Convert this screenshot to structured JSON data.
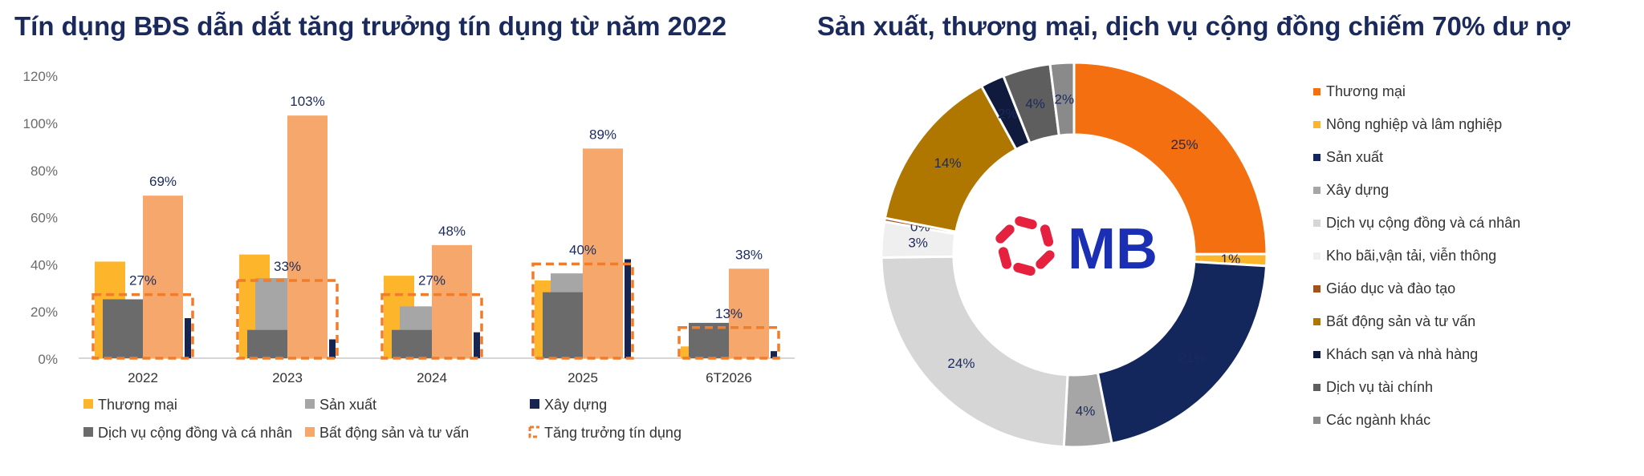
{
  "left_chart_title": "Tín dụng BĐS dẫn dắt tăng trưởng tín dụng từ năm 2022",
  "right_chart_title": "Sản xuất, thương mại, dịch vụ cộng đồng chiếm 70% dư nợ",
  "logo_text": "MB",
  "chart_data": [
    {
      "type": "bar",
      "title": "Tín dụng BĐS dẫn dắt tăng trưởng tín dụng từ năm 2022",
      "categories": [
        "2022",
        "2023",
        "2024",
        "2025",
        "6T2026"
      ],
      "ylim": [
        0,
        120
      ],
      "yticks": [
        "0%",
        "20%",
        "40%",
        "60%",
        "80%",
        "100%",
        "120%"
      ],
      "grid": false,
      "legend_position": "bottom",
      "series": [
        {
          "name": "Thương mại",
          "color": "#fdb52b",
          "values": [
            41,
            44,
            35,
            33,
            5
          ]
        },
        {
          "name": "Sản xuất",
          "color": "#a6a6a6",
          "values": [
            25,
            34,
            22,
            36,
            12
          ]
        },
        {
          "name": "Dịch vụ cộng đồng và cá nhân",
          "color": "#6b6b6b",
          "values": [
            25,
            12,
            12,
            28,
            15
          ]
        },
        {
          "name": "Bất động sản và tư vấn",
          "color": "#f6a86c",
          "values": [
            69,
            103,
            48,
            89,
            38
          ]
        },
        {
          "name": "Xây dựng",
          "color": "#17244f",
          "values": [
            17,
            8,
            11,
            42,
            3
          ]
        },
        {
          "name": "Tăng trưởng tín dụng",
          "color": "#ef7d2b",
          "style": "dashed-box",
          "values": [
            27,
            33,
            27,
            40,
            13
          ]
        }
      ],
      "bar_labels": [
        "69%",
        "103%",
        "48%",
        "89%",
        "38%"
      ],
      "growth_labels": [
        "27%",
        "33%",
        "27%",
        "40%",
        "13%"
      ],
      "legend_order": [
        "Thương mại",
        "Sản xuất",
        "Xây dựng",
        "Dịch vụ cộng đồng và cá nhân",
        "Bất động sản và tư vấn",
        "Tăng trưởng tín dụng"
      ]
    },
    {
      "type": "pie",
      "style": "donut",
      "title": "Sản xuất, thương mại, dịch vụ cộng đồng chiếm 70% dư nợ",
      "legend_position": "right",
      "slices": [
        {
          "name": "Thương mại",
          "value": 25,
          "label": "25%",
          "color": "#f36f10"
        },
        {
          "name": "Nông nghiệp và lâm nghiệp",
          "value": 1,
          "label": "1%",
          "color": "#fdb52b"
        },
        {
          "name": "Sản xuất",
          "value": 21,
          "label": "21%",
          "color": "#13275c"
        },
        {
          "name": "Xây dựng",
          "value": 4,
          "label": "4%",
          "color": "#a6a6a6"
        },
        {
          "name": "Dịch vụ cộng đồng và cá nhân",
          "value": 24,
          "label": "24%",
          "color": "#d6d6d6"
        },
        {
          "name": "Kho bãi,vận tải, viễn thông",
          "value": 3,
          "label": "3%",
          "color": "#efefef"
        },
        {
          "name": "Giáo dục và đào tạo",
          "value": 0.3,
          "label": "0%",
          "color": "#a0531a"
        },
        {
          "name": "Bất động sản và tư vấn",
          "value": 14,
          "label": "14%",
          "color": "#b07700"
        },
        {
          "name": "Khách sạn và nhà hàng",
          "value": 2,
          "label": "2%",
          "color": "#0f1a3d"
        },
        {
          "name": "Dịch vụ tài chính",
          "value": 4,
          "label": "4%",
          "color": "#5e5e5e"
        },
        {
          "name": "Các ngành khác",
          "value": 2,
          "label": "2%",
          "color": "#8a8a8a"
        }
      ]
    }
  ]
}
